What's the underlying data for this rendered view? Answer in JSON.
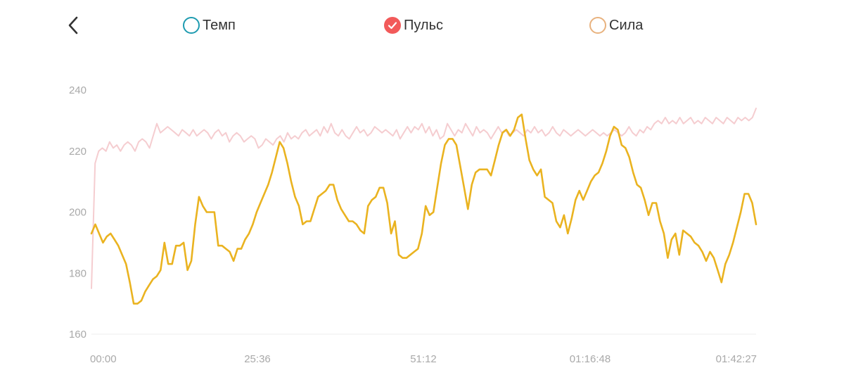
{
  "header": {
    "back_icon": "chevron-left-icon",
    "toggles": [
      {
        "key": "tempo",
        "label": "Темп",
        "checked": false,
        "color": "#1e9bb0"
      },
      {
        "key": "pulse",
        "label": "Пульс",
        "checked": true,
        "color": "#f25a5a"
      },
      {
        "key": "power",
        "label": "Сила",
        "checked": false,
        "color": "#e8b27e"
      }
    ]
  },
  "chart_data": {
    "type": "line",
    "ylim": [
      160,
      240
    ],
    "yticks": [
      "240",
      "220",
      "200",
      "180",
      "160"
    ],
    "yticks_values": [
      240,
      220,
      200,
      180,
      160
    ],
    "xticks": [
      "00:00",
      "25:36",
      "51:12",
      "01:16:48",
      "01:42:27"
    ],
    "xlim_seconds": [
      0,
      6147
    ],
    "grid": "horizontal-baseline",
    "legend": "top",
    "series": [
      {
        "key": "pulse_upper",
        "color": "#f5cdd0",
        "x_seconds_start": 0,
        "x_seconds_end": 6147,
        "values": [
          175,
          216,
          220,
          221,
          220,
          223,
          221,
          222,
          220,
          222,
          223,
          222,
          220,
          223,
          224,
          223,
          221,
          225,
          229,
          226,
          227,
          228,
          227,
          226,
          225,
          227,
          226,
          225,
          227,
          225,
          226,
          227,
          226,
          224,
          226,
          227,
          225,
          226,
          223,
          225,
          226,
          225,
          223,
          224,
          225,
          224,
          221,
          222,
          224,
          223,
          222,
          224,
          225,
          223,
          226,
          224,
          225,
          224,
          226,
          227,
          225,
          226,
          227,
          225,
          228,
          226,
          229,
          226,
          225,
          227,
          225,
          224,
          226,
          228,
          226,
          227,
          225,
          226,
          228,
          227,
          226,
          227,
          226,
          225,
          227,
          224,
          226,
          228,
          226,
          228,
          227,
          229,
          226,
          228,
          225,
          227,
          224,
          225,
          229,
          227,
          225,
          227,
          226,
          229,
          227,
          225,
          228,
          226,
          227,
          226,
          224,
          226,
          228,
          226,
          227,
          225,
          226,
          227,
          226,
          225,
          227,
          226,
          228,
          226,
          227,
          225,
          226,
          228,
          226,
          225,
          227,
          226,
          225,
          226,
          227,
          226,
          225,
          226,
          227,
          226,
          225,
          226,
          225,
          226,
          227,
          226,
          225,
          226,
          228,
          226,
          225,
          227,
          226,
          228,
          227,
          229,
          230,
          229,
          231,
          229,
          230,
          229,
          231,
          229,
          230,
          231,
          229,
          230,
          229,
          231,
          230,
          229,
          231,
          230,
          229,
          231,
          230,
          229,
          231,
          230,
          231,
          230,
          231,
          234
        ]
      },
      {
        "key": "pulse",
        "color": "#eab320",
        "x_seconds_start": 0,
        "x_seconds_end": 6147,
        "values": [
          193,
          196,
          193,
          190,
          192,
          193,
          191,
          189,
          186,
          183,
          177,
          170,
          170,
          171,
          174,
          176,
          178,
          179,
          181,
          190,
          183,
          183,
          189,
          189,
          190,
          181,
          184,
          196,
          205,
          202,
          200,
          200,
          200,
          189,
          189,
          188,
          187,
          184,
          188,
          188,
          191,
          193,
          196,
          200,
          203,
          206,
          209,
          213,
          218,
          223,
          221,
          216,
          210,
          205,
          202,
          196,
          197,
          197,
          201,
          205,
          206,
          207,
          209,
          209,
          204,
          201,
          199,
          197,
          197,
          196,
          194,
          193,
          202,
          204,
          205,
          208,
          208,
          203,
          193,
          197,
          186,
          185,
          185,
          186,
          187,
          188,
          193,
          202,
          199,
          200,
          208,
          216,
          222,
          224,
          224,
          222,
          215,
          208,
          201,
          209,
          213,
          214,
          214,
          214,
          212,
          217,
          222,
          226,
          227,
          225,
          227,
          231,
          232,
          224,
          217,
          214,
          212,
          214,
          205,
          204,
          203,
          197,
          195,
          199,
          193,
          198,
          204,
          207,
          204,
          207,
          210,
          212,
          213,
          216,
          220,
          225,
          228,
          227,
          222,
          221,
          218,
          213,
          209,
          208,
          204,
          199,
          203,
          203,
          197,
          193,
          185,
          191,
          193,
          186,
          194,
          193,
          192,
          190,
          189,
          187,
          184,
          187,
          185,
          181,
          177,
          183,
          186,
          190,
          195,
          200,
          206,
          206,
          203,
          196
        ]
      }
    ]
  }
}
